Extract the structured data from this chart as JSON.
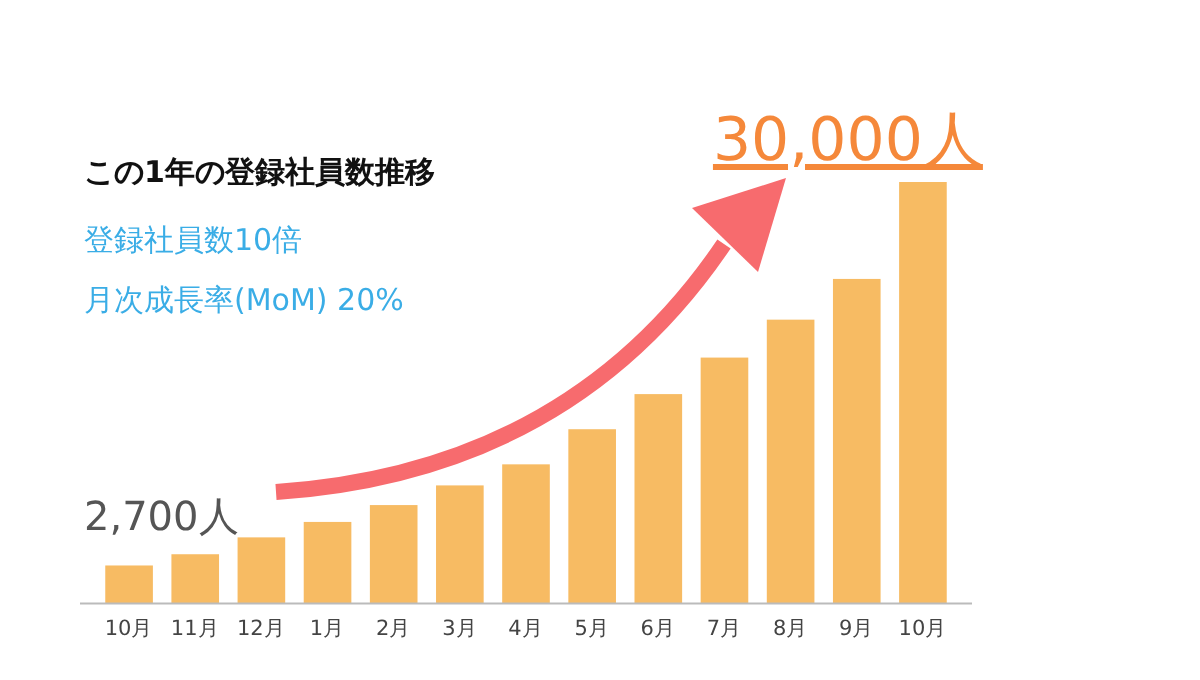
{
  "chart_data": {
    "type": "bar",
    "title": "この1年の登録社員数推移",
    "subtitle": "登録社員数10倍",
    "annotations": [
      "月次成長率(MoM) 20%"
    ],
    "categories": [
      "10月",
      "11月",
      "12月",
      "1月",
      "2月",
      "3月",
      "4月",
      "5月",
      "6月",
      "7月",
      "8月",
      "9月",
      "10月"
    ],
    "values": [
      2700,
      3500,
      4700,
      5800,
      7000,
      8400,
      9900,
      12400,
      14900,
      17500,
      20200,
      23100,
      30000
    ],
    "value_labels": [
      "2,700人",
      null,
      null,
      null,
      null,
      null,
      null,
      null,
      null,
      null,
      null,
      null,
      "30,000人"
    ],
    "color": "#f7bb63"
  }
}
